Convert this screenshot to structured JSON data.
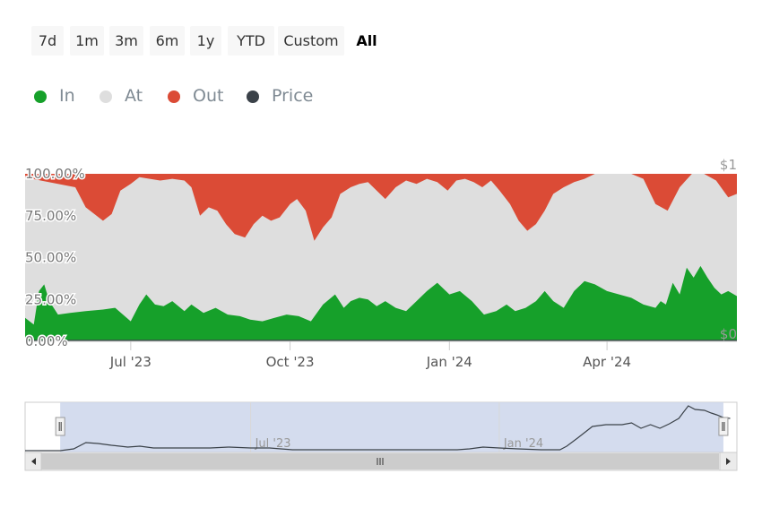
{
  "range_buttons": [
    {
      "label": "7d",
      "active": false
    },
    {
      "label": "1m",
      "active": false
    },
    {
      "label": "3m",
      "active": false
    },
    {
      "label": "6m",
      "active": false
    },
    {
      "label": "1y",
      "active": false
    },
    {
      "label": "YTD",
      "active": false
    },
    {
      "label": "Custom",
      "active": false
    },
    {
      "label": "All",
      "active": true
    }
  ],
  "legend": [
    {
      "label": "In",
      "color": "#16a02a"
    },
    {
      "label": "At",
      "color": "#dedede"
    },
    {
      "label": "Out",
      "color": "#db4b36"
    },
    {
      "label": "Price",
      "color": "#3b4249"
    }
  ],
  "chart_data": {
    "type": "area",
    "stacked": "percent",
    "x_start": "2023-05-01",
    "x_end": "2024-06-15",
    "x_ticks": [
      {
        "date": "2023-07-01",
        "label": "Jul '23"
      },
      {
        "date": "2023-10-01",
        "label": "Oct '23"
      },
      {
        "date": "2024-01-01",
        "label": "Jan '24"
      },
      {
        "date": "2024-04-01",
        "label": "Apr '24"
      }
    ],
    "y_ticks": [
      "0.00%",
      "25.00%",
      "50.00%",
      "75.00%",
      "100.00%"
    ],
    "ylim": [
      0,
      100
    ],
    "y2_ticks": [
      "$0",
      "$1"
    ],
    "grid": false,
    "legend_position": "top-left",
    "series": [
      {
        "name": "In",
        "color": "#16a02a",
        "x": [
          "2023-05-01",
          "2023-05-06",
          "2023-05-09",
          "2023-05-12",
          "2023-05-15",
          "2023-05-20",
          "2023-05-27",
          "2023-06-05",
          "2023-06-15",
          "2023-06-22",
          "2023-07-01",
          "2023-07-06",
          "2023-07-10",
          "2023-07-15",
          "2023-07-20",
          "2023-07-25",
          "2023-08-01",
          "2023-08-05",
          "2023-08-12",
          "2023-08-19",
          "2023-08-26",
          "2023-09-02",
          "2023-09-08",
          "2023-09-15",
          "2023-09-22",
          "2023-09-29",
          "2023-10-06",
          "2023-10-13",
          "2023-10-20",
          "2023-10-27",
          "2023-11-01",
          "2023-11-05",
          "2023-11-10",
          "2023-11-15",
          "2023-11-20",
          "2023-11-25",
          "2023-12-01",
          "2023-12-07",
          "2023-12-13",
          "2023-12-19",
          "2023-12-25",
          "2024-01-01",
          "2024-01-07",
          "2024-01-14",
          "2024-01-21",
          "2024-01-28",
          "2024-02-03",
          "2024-02-08",
          "2024-02-14",
          "2024-02-20",
          "2024-02-25",
          "2024-03-01",
          "2024-03-07",
          "2024-03-13",
          "2024-03-19",
          "2024-03-25",
          "2024-04-01",
          "2024-04-08",
          "2024-04-15",
          "2024-04-22",
          "2024-04-29",
          "2024-05-02",
          "2024-05-05",
          "2024-05-09",
          "2024-05-13",
          "2024-05-17",
          "2024-05-21",
          "2024-05-25",
          "2024-05-29",
          "2024-06-02",
          "2024-06-06",
          "2024-06-10",
          "2024-06-15"
        ],
        "values": [
          14,
          10,
          30,
          34,
          24,
          16,
          17,
          18,
          19,
          20,
          12,
          22,
          28,
          22,
          21,
          24,
          18,
          22,
          17,
          20,
          16,
          15,
          13,
          12,
          14,
          16,
          15,
          12,
          22,
          28,
          20,
          24,
          26,
          25,
          21,
          24,
          20,
          18,
          24,
          30,
          35,
          28,
          30,
          24,
          16,
          18,
          22,
          18,
          20,
          24,
          30,
          24,
          20,
          30,
          36,
          34,
          30,
          28,
          26,
          22,
          20,
          24,
          22,
          35,
          28,
          44,
          38,
          45,
          38,
          32,
          28,
          30,
          27
        ]
      },
      {
        "name": "Out",
        "color": "#db4b36",
        "x": [
          "2023-05-01",
          "2023-05-10",
          "2023-05-20",
          "2023-05-30",
          "2023-06-05",
          "2023-06-15",
          "2023-06-20",
          "2023-06-25",
          "2023-07-01",
          "2023-07-06",
          "2023-07-12",
          "2023-07-18",
          "2023-07-25",
          "2023-08-01",
          "2023-08-05",
          "2023-08-10",
          "2023-08-15",
          "2023-08-20",
          "2023-08-25",
          "2023-08-30",
          "2023-09-05",
          "2023-09-10",
          "2023-09-15",
          "2023-09-20",
          "2023-09-25",
          "2023-10-01",
          "2023-10-05",
          "2023-10-10",
          "2023-10-15",
          "2023-10-20",
          "2023-10-25",
          "2023-10-30",
          "2023-11-05",
          "2023-11-10",
          "2023-11-15",
          "2023-11-20",
          "2023-11-25",
          "2023-12-01",
          "2023-12-07",
          "2023-12-13",
          "2023-12-19",
          "2023-12-25",
          "2023-12-31",
          "2024-01-05",
          "2024-01-10",
          "2024-01-15",
          "2024-01-20",
          "2024-01-25",
          "2024-01-30",
          "2024-02-05",
          "2024-02-10",
          "2024-02-15",
          "2024-02-20",
          "2024-02-25",
          "2024-03-01",
          "2024-03-07",
          "2024-03-13",
          "2024-03-19",
          "2024-03-25",
          "2024-04-01",
          "2024-04-08",
          "2024-04-15",
          "2024-04-22",
          "2024-04-29",
          "2024-05-06",
          "2024-05-13",
          "2024-05-20",
          "2024-05-27",
          "2024-06-03",
          "2024-06-10",
          "2024-06-15"
        ],
        "values": [
          2,
          4,
          6,
          8,
          20,
          28,
          24,
          10,
          6,
          2,
          3,
          4,
          3,
          4,
          8,
          25,
          20,
          22,
          30,
          36,
          38,
          30,
          25,
          28,
          26,
          18,
          15,
          22,
          40,
          32,
          26,
          12,
          8,
          6,
          5,
          10,
          15,
          8,
          4,
          6,
          3,
          5,
          10,
          4,
          3,
          5,
          8,
          4,
          10,
          18,
          28,
          34,
          30,
          22,
          12,
          8,
          5,
          3,
          0,
          0,
          0,
          0,
          3,
          18,
          22,
          8,
          0,
          0,
          4,
          14,
          12
        ]
      },
      {
        "name": "Price",
        "color": "#3b4249",
        "x": [
          "2023-05-01",
          "2024-06-15"
        ],
        "values": [
          0,
          0
        ]
      }
    ],
    "navigator": {
      "x_ticks": [
        {
          "date": "2023-07-01",
          "label": "Jul '23"
        },
        {
          "date": "2024-01-01",
          "label": "Jan '24"
        }
      ],
      "x_start": "2023-01-15",
      "x_end": "2024-06-25",
      "window_start": "2023-02-10",
      "window_end": "2024-06-15",
      "series": [
        {
          "x": [
            "2023-01-15",
            "2023-02-10",
            "2023-02-20",
            "2023-03-01",
            "2023-03-10",
            "2023-03-20",
            "2023-04-01",
            "2023-04-10",
            "2023-04-20",
            "2023-05-01",
            "2023-06-01",
            "2023-06-15",
            "2023-07-01",
            "2023-07-15",
            "2023-08-01",
            "2023-10-01",
            "2023-12-01",
            "2023-12-10",
            "2023-12-20",
            "2024-01-01",
            "2024-01-15",
            "2024-02-01",
            "2024-02-15",
            "2024-02-20",
            "2024-02-28",
            "2024-03-10",
            "2024-03-20",
            "2024-04-01",
            "2024-04-08",
            "2024-04-15",
            "2024-04-22",
            "2024-04-29",
            "2024-05-06",
            "2024-05-13",
            "2024-05-16",
            "2024-05-20",
            "2024-05-25",
            "2024-06-01",
            "2024-06-06",
            "2024-06-10",
            "2024-06-15",
            "2024-06-20"
          ],
          "values": [
            0,
            0,
            2,
            9,
            8,
            6,
            4,
            5,
            3,
            3,
            3,
            4,
            3,
            3,
            1,
            1,
            1,
            2,
            4,
            3,
            2,
            1,
            1,
            5,
            14,
            27,
            29,
            29,
            31,
            25,
            29,
            25,
            30,
            36,
            42,
            50,
            46,
            45,
            42,
            40,
            37,
            36
          ]
        }
      ]
    }
  }
}
